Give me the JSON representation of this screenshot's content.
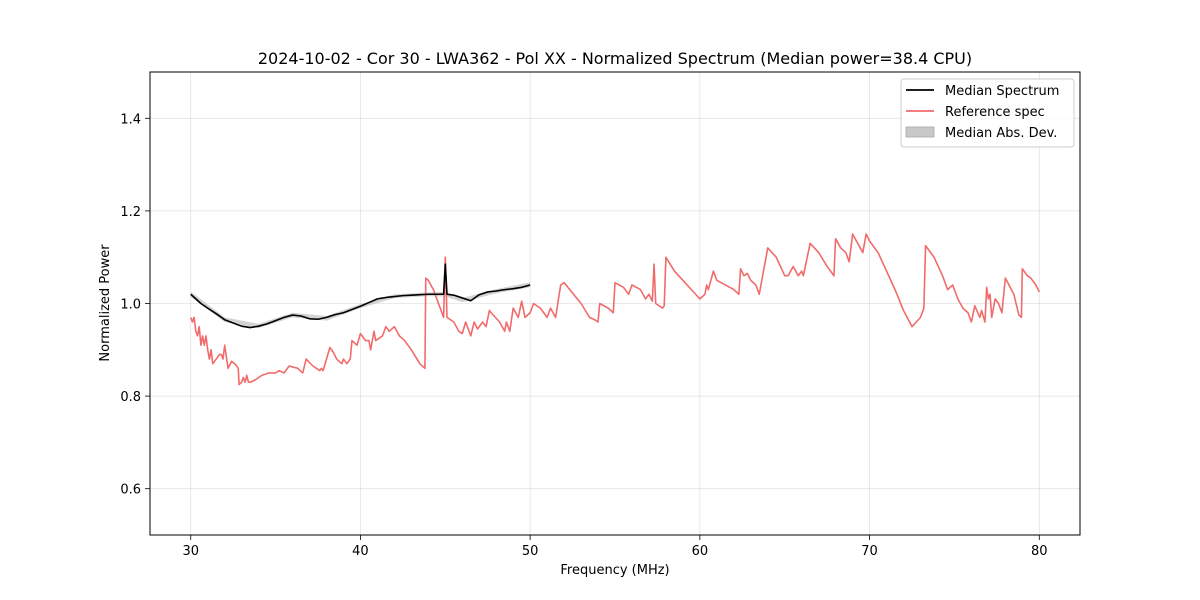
{
  "chart_data": {
    "type": "line",
    "title": "2024-10-02 - Cor 30 - LWA362 - Pol XX - Normalized Spectrum (Median power=38.4 CPU)",
    "xlabel": "Frequency (MHz)",
    "ylabel": "Normalized Power",
    "xlim": [
      27.6,
      82.4
    ],
    "ylim": [
      0.5,
      1.5
    ],
    "xticks": [
      30,
      40,
      50,
      60,
      70,
      80
    ],
    "yticks": [
      0.6,
      0.8,
      1.0,
      1.2,
      1.4
    ],
    "grid": true,
    "legend_position": "top-right",
    "colors": {
      "median": "#000000",
      "reference": "#f26b6b",
      "mad": "#c8c8c8"
    },
    "series": [
      {
        "name": "Median Spectrum",
        "style": "line",
        "x": [
          30.0,
          30.3,
          30.6,
          31.0,
          31.5,
          32.0,
          32.5,
          33.0,
          33.5,
          34.0,
          34.5,
          35.0,
          35.5,
          36.0,
          36.5,
          37.0,
          37.5,
          38.0,
          38.5,
          39.0,
          39.5,
          40.0,
          40.5,
          41.0,
          41.5,
          42.0,
          42.5,
          43.0,
          43.5,
          44.0,
          44.5,
          44.9,
          45.0,
          45.1,
          45.5,
          46.0,
          46.5,
          47.0,
          47.5,
          48.0,
          48.5,
          49.0,
          49.5,
          50.0
        ],
        "y": [
          1.02,
          1.01,
          1.0,
          0.99,
          0.978,
          0.965,
          0.958,
          0.951,
          0.948,
          0.951,
          0.956,
          0.963,
          0.97,
          0.975,
          0.973,
          0.967,
          0.966,
          0.97,
          0.976,
          0.98,
          0.987,
          0.994,
          1.002,
          1.01,
          1.013,
          1.015,
          1.017,
          1.018,
          1.019,
          1.02,
          1.02,
          1.02,
          1.085,
          1.02,
          1.018,
          1.012,
          1.006,
          1.019,
          1.025,
          1.027,
          1.03,
          1.032,
          1.035,
          1.04
        ]
      },
      {
        "name": "Reference spec",
        "style": "line",
        "x": [
          30.0,
          30.1,
          30.2,
          30.3,
          30.4,
          30.5,
          30.6,
          30.7,
          30.8,
          30.9,
          31.0,
          31.1,
          31.2,
          31.3,
          31.5,
          31.7,
          31.8,
          31.9,
          32.0,
          32.2,
          32.4,
          32.6,
          32.8,
          32.85,
          33.0,
          33.1,
          33.2,
          33.3,
          33.4,
          33.5,
          33.8,
          34.2,
          34.6,
          34.8,
          35.0,
          35.2,
          35.5,
          35.7,
          35.8,
          36.3,
          36.6,
          36.8,
          37.2,
          37.4,
          37.6,
          37.7,
          37.8,
          38.2,
          38.4,
          38.6,
          38.9,
          39.0,
          39.2,
          39.4,
          39.5,
          39.8,
          40.0,
          40.3,
          40.5,
          40.6,
          40.8,
          40.9,
          41.3,
          41.5,
          41.7,
          42.0,
          42.3,
          42.6,
          43.0,
          43.5,
          43.8,
          43.85,
          44.0,
          44.3,
          44.6,
          44.9,
          45.0,
          45.1,
          45.5,
          45.8,
          46.0,
          46.2,
          46.5,
          46.7,
          46.9,
          47.2,
          47.4,
          47.6,
          47.7,
          48.2,
          48.5,
          48.6,
          48.8,
          49.0,
          49.3,
          49.5,
          49.7,
          50.0,
          50.2,
          50.6,
          51.0,
          51.2,
          51.5,
          51.8,
          52.0,
          53.0,
          53.5,
          53.8,
          54.0,
          54.1,
          54.6,
          54.9,
          55.0,
          55.5,
          55.8,
          56.0,
          56.5,
          56.8,
          57.0,
          57.2,
          57.3,
          57.4,
          57.8,
          57.9,
          58.0,
          58.5,
          59.0,
          59.5,
          60.0,
          60.3,
          60.4,
          60.5,
          60.8,
          61.0,
          61.5,
          62.0,
          62.3,
          62.4,
          62.6,
          62.8,
          63.0,
          63.3,
          63.5,
          64.0,
          64.5,
          65.0,
          65.2,
          65.5,
          65.8,
          66.0,
          66.1,
          66.5,
          67.0,
          67.5,
          67.9,
          68.0,
          68.3,
          68.6,
          68.8,
          69.0,
          69.3,
          69.6,
          69.8,
          70.0,
          70.5,
          71.0,
          71.5,
          72.0,
          72.5,
          73.0,
          73.2,
          73.3,
          73.8,
          74.3,
          74.6,
          74.9,
          75.2,
          75.5,
          75.8,
          76.0,
          76.2,
          76.5,
          76.6,
          76.8,
          76.9,
          77.0,
          77.1,
          77.2,
          77.4,
          77.6,
          77.8,
          78.0,
          78.5,
          78.8,
          78.95,
          79.0,
          79.3,
          79.5,
          79.8,
          80.0
        ],
        "y": [
          0.97,
          0.96,
          0.97,
          0.94,
          0.93,
          0.95,
          0.91,
          0.93,
          0.91,
          0.93,
          0.9,
          0.88,
          0.9,
          0.87,
          0.88,
          0.89,
          0.89,
          0.88,
          0.91,
          0.86,
          0.875,
          0.87,
          0.86,
          0.825,
          0.83,
          0.84,
          0.83,
          0.845,
          0.83,
          0.83,
          0.835,
          0.845,
          0.85,
          0.85,
          0.85,
          0.855,
          0.85,
          0.86,
          0.865,
          0.86,
          0.85,
          0.88,
          0.865,
          0.86,
          0.855,
          0.86,
          0.855,
          0.905,
          0.895,
          0.88,
          0.87,
          0.88,
          0.87,
          0.88,
          0.92,
          0.91,
          0.935,
          0.92,
          0.92,
          0.9,
          0.94,
          0.92,
          0.93,
          0.95,
          0.94,
          0.95,
          0.93,
          0.92,
          0.9,
          0.87,
          0.86,
          1.055,
          1.05,
          1.03,
          1.0,
          0.97,
          1.1,
          0.97,
          0.96,
          0.94,
          0.935,
          0.96,
          0.93,
          0.96,
          0.945,
          0.96,
          0.95,
          0.985,
          0.98,
          0.96,
          0.94,
          0.96,
          0.94,
          0.99,
          0.97,
          1.005,
          0.97,
          0.98,
          1.0,
          0.99,
          0.97,
          0.99,
          0.97,
          1.04,
          1.045,
          1.0,
          0.97,
          0.965,
          0.96,
          1.0,
          0.99,
          0.98,
          1.045,
          1.035,
          1.02,
          1.04,
          1.03,
          1.01,
          1.02,
          1.005,
          1.085,
          1.0,
          0.99,
          0.995,
          1.1,
          1.07,
          1.05,
          1.03,
          1.01,
          1.02,
          1.04,
          1.03,
          1.07,
          1.05,
          1.04,
          1.03,
          1.02,
          1.075,
          1.06,
          1.065,
          1.05,
          1.04,
          1.02,
          1.12,
          1.1,
          1.06,
          1.06,
          1.08,
          1.06,
          1.07,
          1.06,
          1.13,
          1.11,
          1.08,
          1.06,
          1.14,
          1.12,
          1.11,
          1.09,
          1.15,
          1.13,
          1.11,
          1.15,
          1.135,
          1.11,
          1.07,
          1.03,
          0.985,
          0.95,
          0.97,
          0.99,
          1.125,
          1.1,
          1.06,
          1.03,
          1.04,
          1.01,
          0.99,
          0.98,
          0.96,
          0.995,
          0.97,
          0.985,
          0.96,
          1.035,
          1.01,
          1.02,
          0.97,
          1.01,
          1.0,
          0.98,
          1.055,
          1.02,
          0.975,
          0.97,
          1.075,
          1.06,
          1.055,
          1.04,
          1.025
        ]
      },
      {
        "name": "Median Abs. Dev.",
        "style": "band",
        "x": [
          30.0,
          32.0,
          34.0,
          36.0,
          38.0,
          40.0,
          42.0,
          44.0,
          45.0,
          46.0,
          48.0,
          50.0
        ],
        "lower": [
          1.014,
          0.96,
          0.947,
          0.97,
          0.963,
          0.99,
          1.012,
          1.016,
          1.015,
          1.003,
          1.022,
          1.035
        ],
        "upper": [
          1.026,
          0.97,
          0.956,
          0.98,
          0.973,
          0.999,
          1.02,
          1.024,
          1.025,
          1.012,
          1.031,
          1.046
        ]
      }
    ]
  }
}
